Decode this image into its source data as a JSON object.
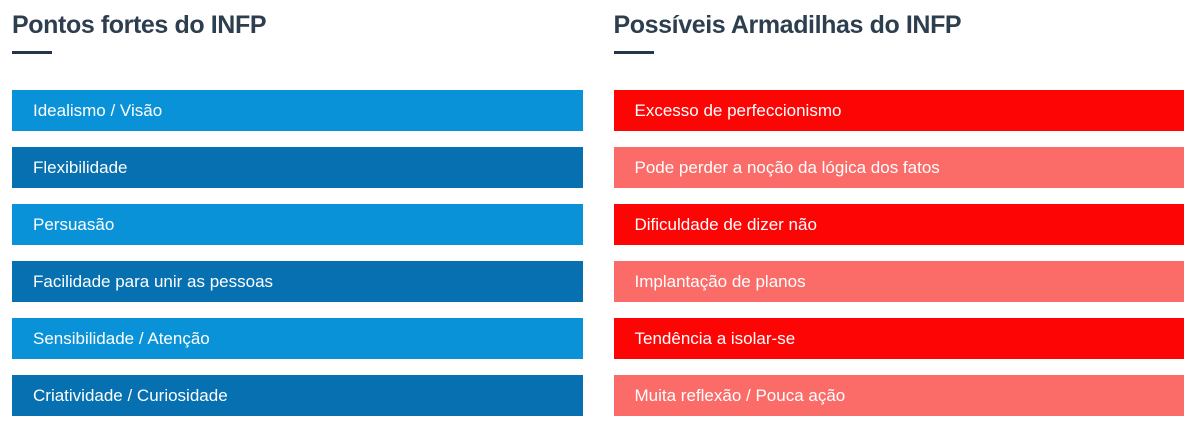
{
  "theme": {
    "background": "#ffffff",
    "heading_color": "#2d3e4f",
    "divider_color": "#253649",
    "bar_text_color": "#ffffff"
  },
  "columns": [
    {
      "title": "Pontos fortes do INFP",
      "palette": {
        "a": "#0a92d8",
        "b": "#0670b0"
      },
      "items": [
        {
          "label": "Idealismo / Visão",
          "variant": "a"
        },
        {
          "label": "Flexibilidade",
          "variant": "b"
        },
        {
          "label": "Persuasão",
          "variant": "a"
        },
        {
          "label": "Facilidade para unir as pessoas",
          "variant": "b"
        },
        {
          "label": "Sensibilidade / Atenção",
          "variant": "a"
        },
        {
          "label": "Criatividade / Curiosidade",
          "variant": "b"
        }
      ]
    },
    {
      "title": "Possíveis Armadilhas do INFP",
      "palette": {
        "a": "#fd0505",
        "b": "#fb6b68"
      },
      "items": [
        {
          "label": "Excesso de perfeccionismo",
          "variant": "a"
        },
        {
          "label": "Pode perder a noção da lógica dos fatos",
          "variant": "b"
        },
        {
          "label": "Dificuldade de dizer não",
          "variant": "a"
        },
        {
          "label": "Implantação de planos",
          "variant": "b"
        },
        {
          "label": "Tendência a isolar-se",
          "variant": "a"
        },
        {
          "label": "Muita reflexão / Pouca ação",
          "variant": "b"
        }
      ]
    }
  ]
}
